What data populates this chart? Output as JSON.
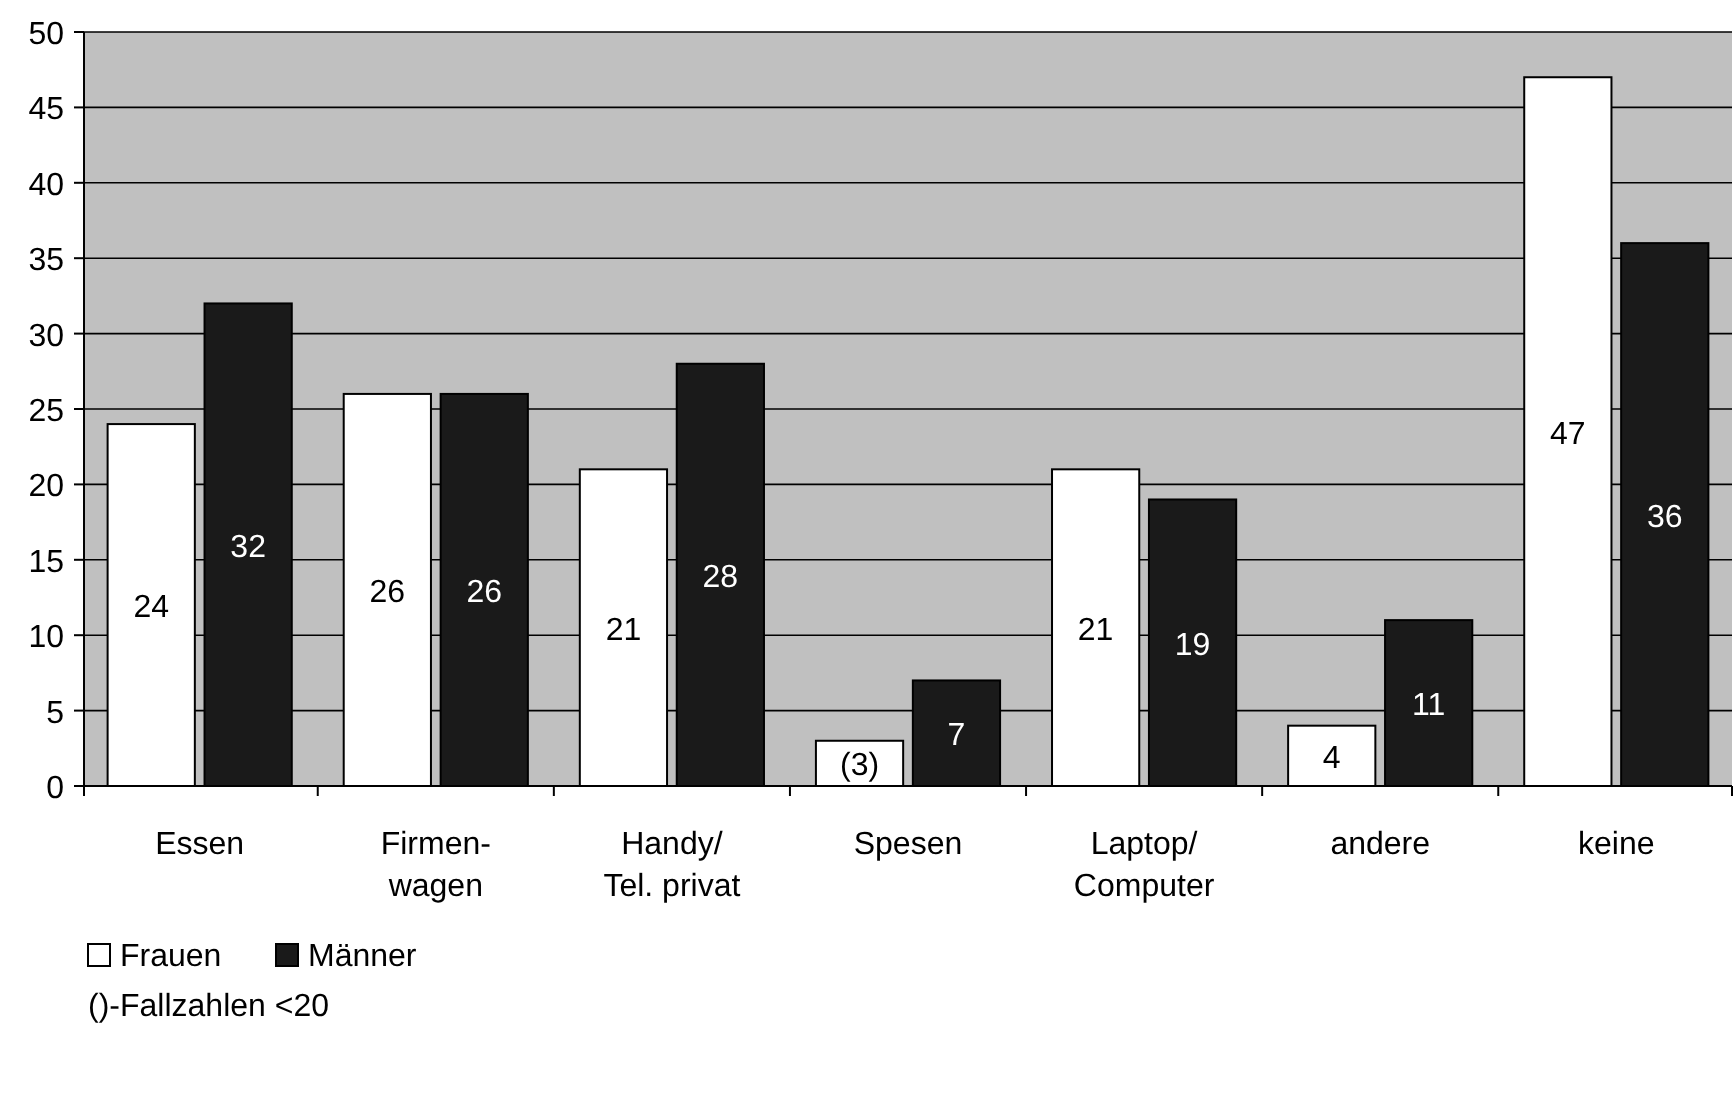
{
  "chart_data": {
    "type": "bar",
    "categories": [
      "Essen",
      "Firmen-\nwagen",
      "Handy/\nTel. privat",
      "Spesen",
      "Laptop/\nComputer",
      "andere",
      "keine"
    ],
    "series": [
      {
        "name": "Frauen",
        "color": "#ffffff",
        "values": [
          24,
          26,
          21,
          3,
          21,
          4,
          47
        ],
        "value_labels": [
          "24",
          "26",
          "21",
          "(3)",
          "21",
          "4",
          "47"
        ]
      },
      {
        "name": "Männer",
        "color": "#1a1a1a",
        "values": [
          32,
          26,
          28,
          7,
          19,
          11,
          36
        ],
        "value_labels": [
          "32",
          "26",
          "28",
          "7",
          "19",
          "11",
          "36"
        ]
      }
    ],
    "ylim": [
      0,
      50
    ],
    "yticks": [
      0,
      5,
      10,
      15,
      20,
      25,
      30,
      35,
      40,
      45,
      50
    ],
    "grid": "y",
    "legend": "bottom left",
    "annotations": [
      "()-Fallzahlen <20"
    ]
  }
}
